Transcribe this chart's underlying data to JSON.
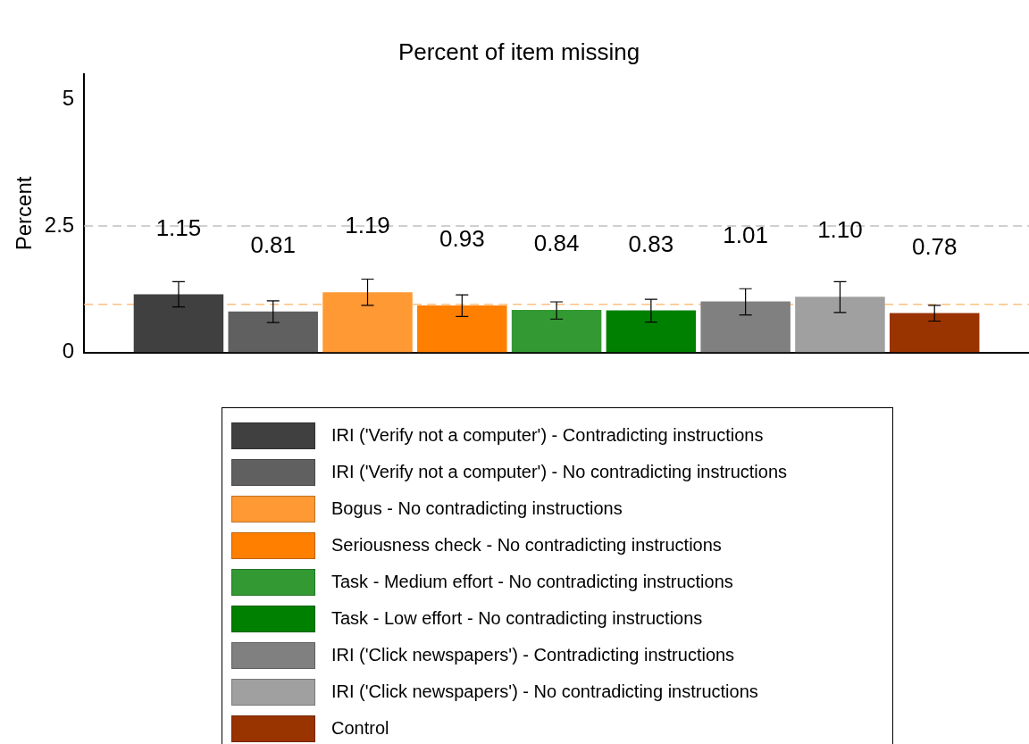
{
  "chart_data": {
    "type": "bar",
    "title": "Percent of item missing",
    "ylabel": "Percent",
    "categories": [
      null
    ],
    "series": [
      {
        "name": "IRI ('Verify not a computer') - Contradicting instructions",
        "color": "#404040",
        "values": [
          1.15
        ],
        "value_labels": [
          "1.15"
        ],
        "errors": [
          [
            0.9,
            1.4
          ]
        ]
      },
      {
        "name": "IRI ('Verify not a computer') - No contradicting instructions",
        "color": "#606060",
        "values": [
          0.81
        ],
        "value_labels": [
          "0.81"
        ],
        "errors": [
          [
            0.59,
            1.02
          ]
        ]
      },
      {
        "name": "Bogus - No contradicting instructions",
        "color": "#ff9933",
        "values": [
          1.19
        ],
        "value_labels": [
          "1.19"
        ],
        "errors": [
          [
            0.93,
            1.45
          ]
        ]
      },
      {
        "name": "Seriousness check - No contradicting instructions",
        "color": "#ff8000",
        "values": [
          0.93
        ],
        "value_labels": [
          "0.93"
        ],
        "errors": [
          [
            0.71,
            1.14
          ]
        ]
      },
      {
        "name": "Task - Medium effort - No contradicting instructions",
        "color": "#339933",
        "values": [
          0.84
        ],
        "value_labels": [
          "0.84"
        ],
        "errors": [
          [
            0.66,
            1.0
          ]
        ]
      },
      {
        "name": "Task - Low effort - No contradicting instructions",
        "color": "#008000",
        "values": [
          0.83
        ],
        "value_labels": [
          "0.83"
        ],
        "errors": [
          [
            0.6,
            1.05
          ]
        ]
      },
      {
        "name": "IRI  ('Click newspapers') - Contradicting instructions",
        "color": "#808080",
        "values": [
          1.01
        ],
        "value_labels": [
          "1.01"
        ],
        "errors": [
          [
            0.74,
            1.26
          ]
        ]
      },
      {
        "name": "IRI ('Click newspapers') - No contradicting instructions",
        "color": "#a0a0a0",
        "values": [
          1.1
        ],
        "value_labels": [
          "1.10"
        ],
        "errors": [
          [
            0.79,
            1.4
          ]
        ]
      },
      {
        "name": "Control",
        "color": "#993300",
        "values": [
          0.78
        ],
        "value_labels": [
          "0.78"
        ],
        "errors": [
          [
            0.62,
            0.93
          ]
        ]
      }
    ],
    "ylim": [
      0,
      5.5
    ],
    "yticks": [
      0,
      2.5,
      5
    ],
    "ref_lines": [
      {
        "axis": "y",
        "value": 2.5,
        "color": "#c0c0c0",
        "line_style": "dashed"
      },
      {
        "axis": "y",
        "value": 0.95,
        "color": "#ffbf80",
        "line_style": "dashed"
      }
    ],
    "grid": false,
    "legend": "bottom"
  }
}
